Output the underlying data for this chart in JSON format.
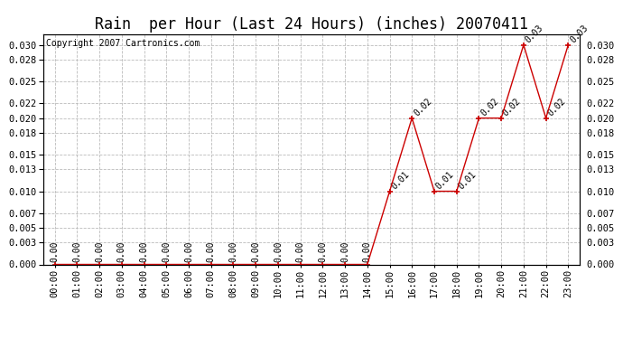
{
  "title": "Rain  per Hour (Last 24 Hours) (inches) 20070411",
  "copyright": "Copyright 2007 Cartronics.com",
  "hours": [
    "00:00",
    "01:00",
    "02:00",
    "03:00",
    "04:00",
    "05:00",
    "06:00",
    "07:00",
    "08:00",
    "09:00",
    "10:00",
    "11:00",
    "12:00",
    "13:00",
    "14:00",
    "15:00",
    "16:00",
    "17:00",
    "18:00",
    "19:00",
    "20:00",
    "21:00",
    "22:00",
    "23:00"
  ],
  "values": [
    0.0,
    0.0,
    0.0,
    0.0,
    0.0,
    0.0,
    0.0,
    0.0,
    0.0,
    0.0,
    0.0,
    0.0,
    0.0,
    0.0,
    0.0,
    0.01,
    0.02,
    0.01,
    0.01,
    0.02,
    0.02,
    0.03,
    0.02,
    0.03
  ],
  "line_color": "#cc0000",
  "marker_color": "#cc0000",
  "background_color": "#ffffff",
  "grid_color": "#bbbbbb",
  "ylim": [
    0,
    0.0315
  ],
  "yticks": [
    0.0,
    0.003,
    0.005,
    0.007,
    0.01,
    0.013,
    0.015,
    0.018,
    0.02,
    0.022,
    0.025,
    0.028,
    0.03
  ],
  "title_fontsize": 12,
  "label_fontsize": 7.5,
  "annot_fontsize": 7,
  "copyright_fontsize": 7
}
